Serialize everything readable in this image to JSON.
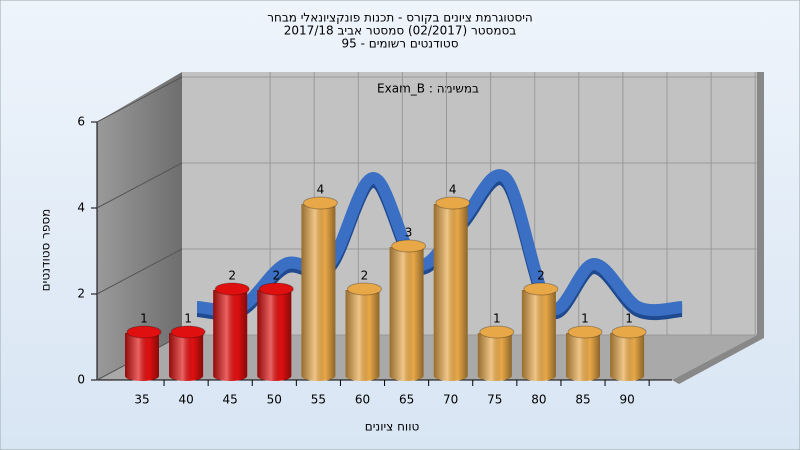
{
  "chart_data": {
    "type": "bar",
    "title": [
      "היסטוגרמת ציונים בקורס - תכנות פונקציונאלי מבחר",
      "בסמסטר  (02/2017)  סמסטר אביב 2017/18",
      "סטודנטים רשומים - 95"
    ],
    "annotation": "במשימה : Exam_B",
    "x_label": "טווח ציונים",
    "y_label": "מספר סטודנטים",
    "categories": [
      "35",
      "40",
      "45",
      "50",
      "55",
      "60",
      "65",
      "70",
      "75",
      "80",
      "85",
      "90"
    ],
    "values": [
      1,
      1,
      2,
      2,
      4,
      2,
      3,
      4,
      1,
      2,
      1,
      1
    ],
    "colors": [
      "#e01010",
      "#e01010",
      "#e01010",
      "#e01010",
      "#e8a848",
      "#e8a848",
      "#e8a848",
      "#e8a848",
      "#e8a848",
      "#e8a848",
      "#e8a848",
      "#e8a848"
    ],
    "trend_color": "#3a6fc4",
    "ylim": [
      0,
      6
    ],
    "yticks": [
      0,
      2,
      4,
      6
    ],
    "grid": true
  }
}
